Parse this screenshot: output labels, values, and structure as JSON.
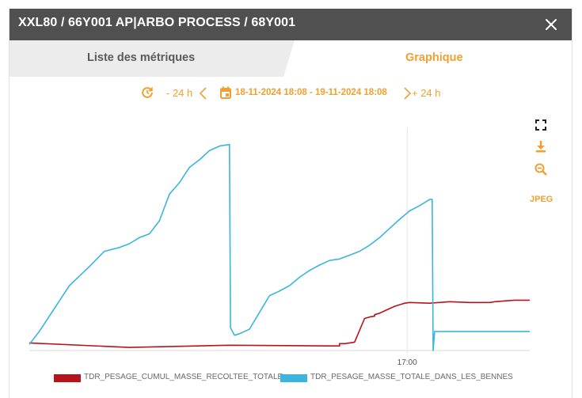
{
  "window": {
    "title": "XXL80 / 66Y001 AP|ARBO PROCESS / 68Y001",
    "close_icon": "close-icon"
  },
  "tabs": [
    {
      "label": "Liste des métriques",
      "active": false
    },
    {
      "label": "Graphique",
      "active": true
    }
  ],
  "nav": {
    "refresh_icon": "refresh-icon",
    "back_label": "- 24 h",
    "prev_icon": "chevron-left-icon",
    "calendar_icon": "calendar-icon",
    "range_label": "18-11-2024 18:08 - 19-11-2024 18:08",
    "next_icon": "chevron-right-icon",
    "forward_label": "+ 24 h"
  },
  "toolbar": {
    "fullscreen_icon": "fullscreen-icon",
    "download_icon": "download-icon",
    "zoom_out_icon": "zoom-out-icon",
    "jpeg_label": "JPEG"
  },
  "colors": {
    "accent": "#f0a030",
    "titlebar": "#505050",
    "series_red": "#b8131a",
    "series_blue": "#3cb4e0"
  },
  "chart_data": {
    "type": "line",
    "x_tick_labels": [
      "17:00"
    ],
    "grid": false,
    "legend_position": "bottom",
    "series": [
      {
        "name": "TDR_PESAGE_CUMUL_MASSE_RECOLTEE_TOTALE",
        "color": "#b8131a",
        "points": [
          [
            0,
            10
          ],
          [
            0.2,
            4
          ],
          [
            0.4,
            7
          ],
          [
            0.6,
            6
          ],
          [
            0.62,
            6
          ],
          [
            0.62,
            8
          ],
          [
            0.62,
            9
          ],
          [
            0.62,
            9
          ],
          [
            0.63,
            9
          ],
          [
            0.64,
            10
          ],
          [
            0.65,
            11
          ],
          [
            0.67,
            42
          ],
          [
            0.68,
            44
          ],
          [
            0.69,
            45
          ],
          [
            0.69,
            47
          ],
          [
            0.7,
            49
          ],
          [
            0.71,
            52
          ],
          [
            0.72,
            55
          ],
          [
            0.73,
            58
          ],
          [
            0.74,
            60
          ],
          [
            0.75,
            62
          ],
          [
            0.76,
            63
          ],
          [
            0.8,
            62
          ],
          [
            0.84,
            64
          ],
          [
            0.88,
            63
          ],
          [
            0.92,
            63
          ],
          [
            0.93,
            64
          ],
          [
            0.95,
            65
          ],
          [
            0.97,
            66
          ],
          [
            1.0,
            66
          ]
        ]
      },
      {
        "name": "TDR_PESAGE_MASSE_TOTALE_DANS_LES_BENNES",
        "color": "#3cb4e0",
        "points": [
          [
            0,
            8
          ],
          [
            0.02,
            25
          ],
          [
            0.05,
            55
          ],
          [
            0.08,
            85
          ],
          [
            0.12,
            110
          ],
          [
            0.15,
            130
          ],
          [
            0.18,
            135
          ],
          [
            0.2,
            140
          ],
          [
            0.22,
            148
          ],
          [
            0.24,
            153
          ],
          [
            0.26,
            170
          ],
          [
            0.28,
            205
          ],
          [
            0.3,
            220
          ],
          [
            0.32,
            240
          ],
          [
            0.34,
            250
          ],
          [
            0.36,
            262
          ],
          [
            0.38,
            268
          ],
          [
            0.4,
            270
          ],
          [
            0.402,
            30
          ],
          [
            0.41,
            20
          ],
          [
            0.42,
            22
          ],
          [
            0.44,
            28
          ],
          [
            0.46,
            50
          ],
          [
            0.48,
            72
          ],
          [
            0.5,
            78
          ],
          [
            0.52,
            85
          ],
          [
            0.54,
            96
          ],
          [
            0.56,
            105
          ],
          [
            0.58,
            112
          ],
          [
            0.6,
            118
          ],
          [
            0.62,
            120
          ],
          [
            0.64,
            125
          ],
          [
            0.66,
            130
          ],
          [
            0.68,
            138
          ],
          [
            0.7,
            148
          ],
          [
            0.72,
            160
          ],
          [
            0.74,
            172
          ],
          [
            0.76,
            183
          ],
          [
            0.78,
            190
          ],
          [
            0.8,
            198
          ],
          [
            0.805,
            198
          ],
          [
            0.807,
            0
          ],
          [
            0.81,
            25
          ],
          [
            0.85,
            25
          ],
          [
            0.9,
            25
          ],
          [
            0.95,
            25
          ],
          [
            1.0,
            25
          ]
        ]
      }
    ]
  }
}
